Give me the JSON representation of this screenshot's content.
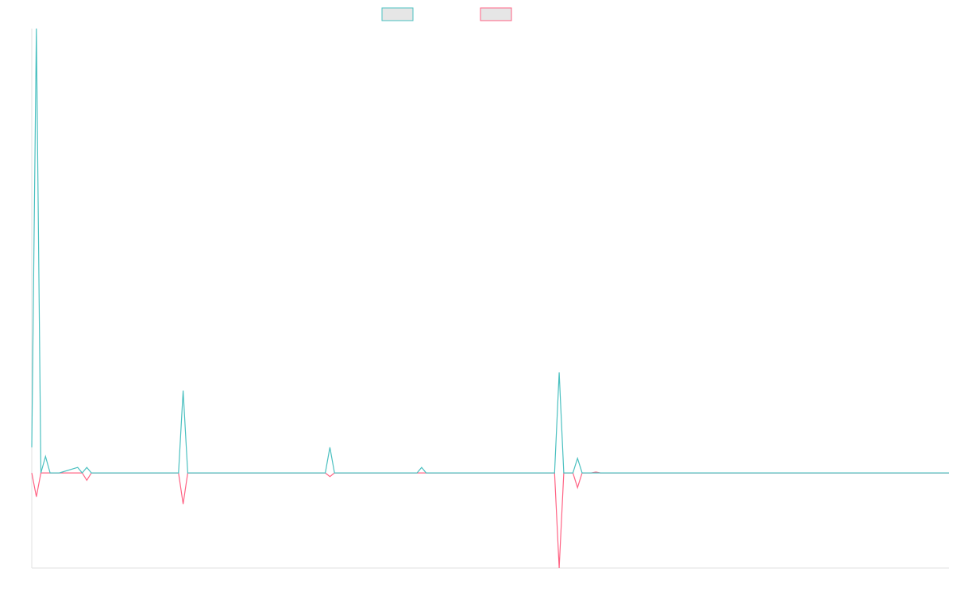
{
  "chart_data": {
    "type": "line",
    "title": "",
    "xlabel": "",
    "ylabel": "",
    "legend_position": "top-center",
    "x": [
      0,
      0.5,
      1,
      1.5,
      2,
      2.5,
      3,
      5,
      5.5,
      6,
      6.5,
      7,
      16,
      16.5,
      17,
      32,
      32.5,
      33,
      42,
      42.5,
      43,
      57,
      57.5,
      58,
      59,
      59.5,
      60,
      61,
      61.5,
      62,
      100
    ],
    "xlim": [
      0,
      100
    ],
    "ylim": [
      -5.2,
      24.3
    ],
    "series": [
      {
        "color": "#4bc0c0",
        "fill": "#e6e6e6",
        "values": [
          1.4,
          24.3,
          0,
          0.9,
          0,
          0,
          0,
          0.3,
          0,
          0.3,
          0,
          0,
          0,
          4.5,
          0,
          0,
          1.4,
          0,
          0,
          0.3,
          0,
          0,
          5.5,
          0,
          0,
          0.8,
          0,
          0,
          0,
          0,
          0
        ]
      },
      {
        "color": "#ff6384",
        "fill": "#e6e6e6",
        "values": [
          0,
          -1.3,
          0,
          0,
          0,
          0,
          0,
          0,
          0,
          -0.4,
          0,
          0,
          0,
          -1.7,
          0,
          0,
          -0.2,
          0,
          0,
          0,
          0,
          0,
          -5.2,
          0,
          0,
          -0.8,
          0,
          0,
          0.05,
          0,
          0
        ]
      }
    ]
  }
}
